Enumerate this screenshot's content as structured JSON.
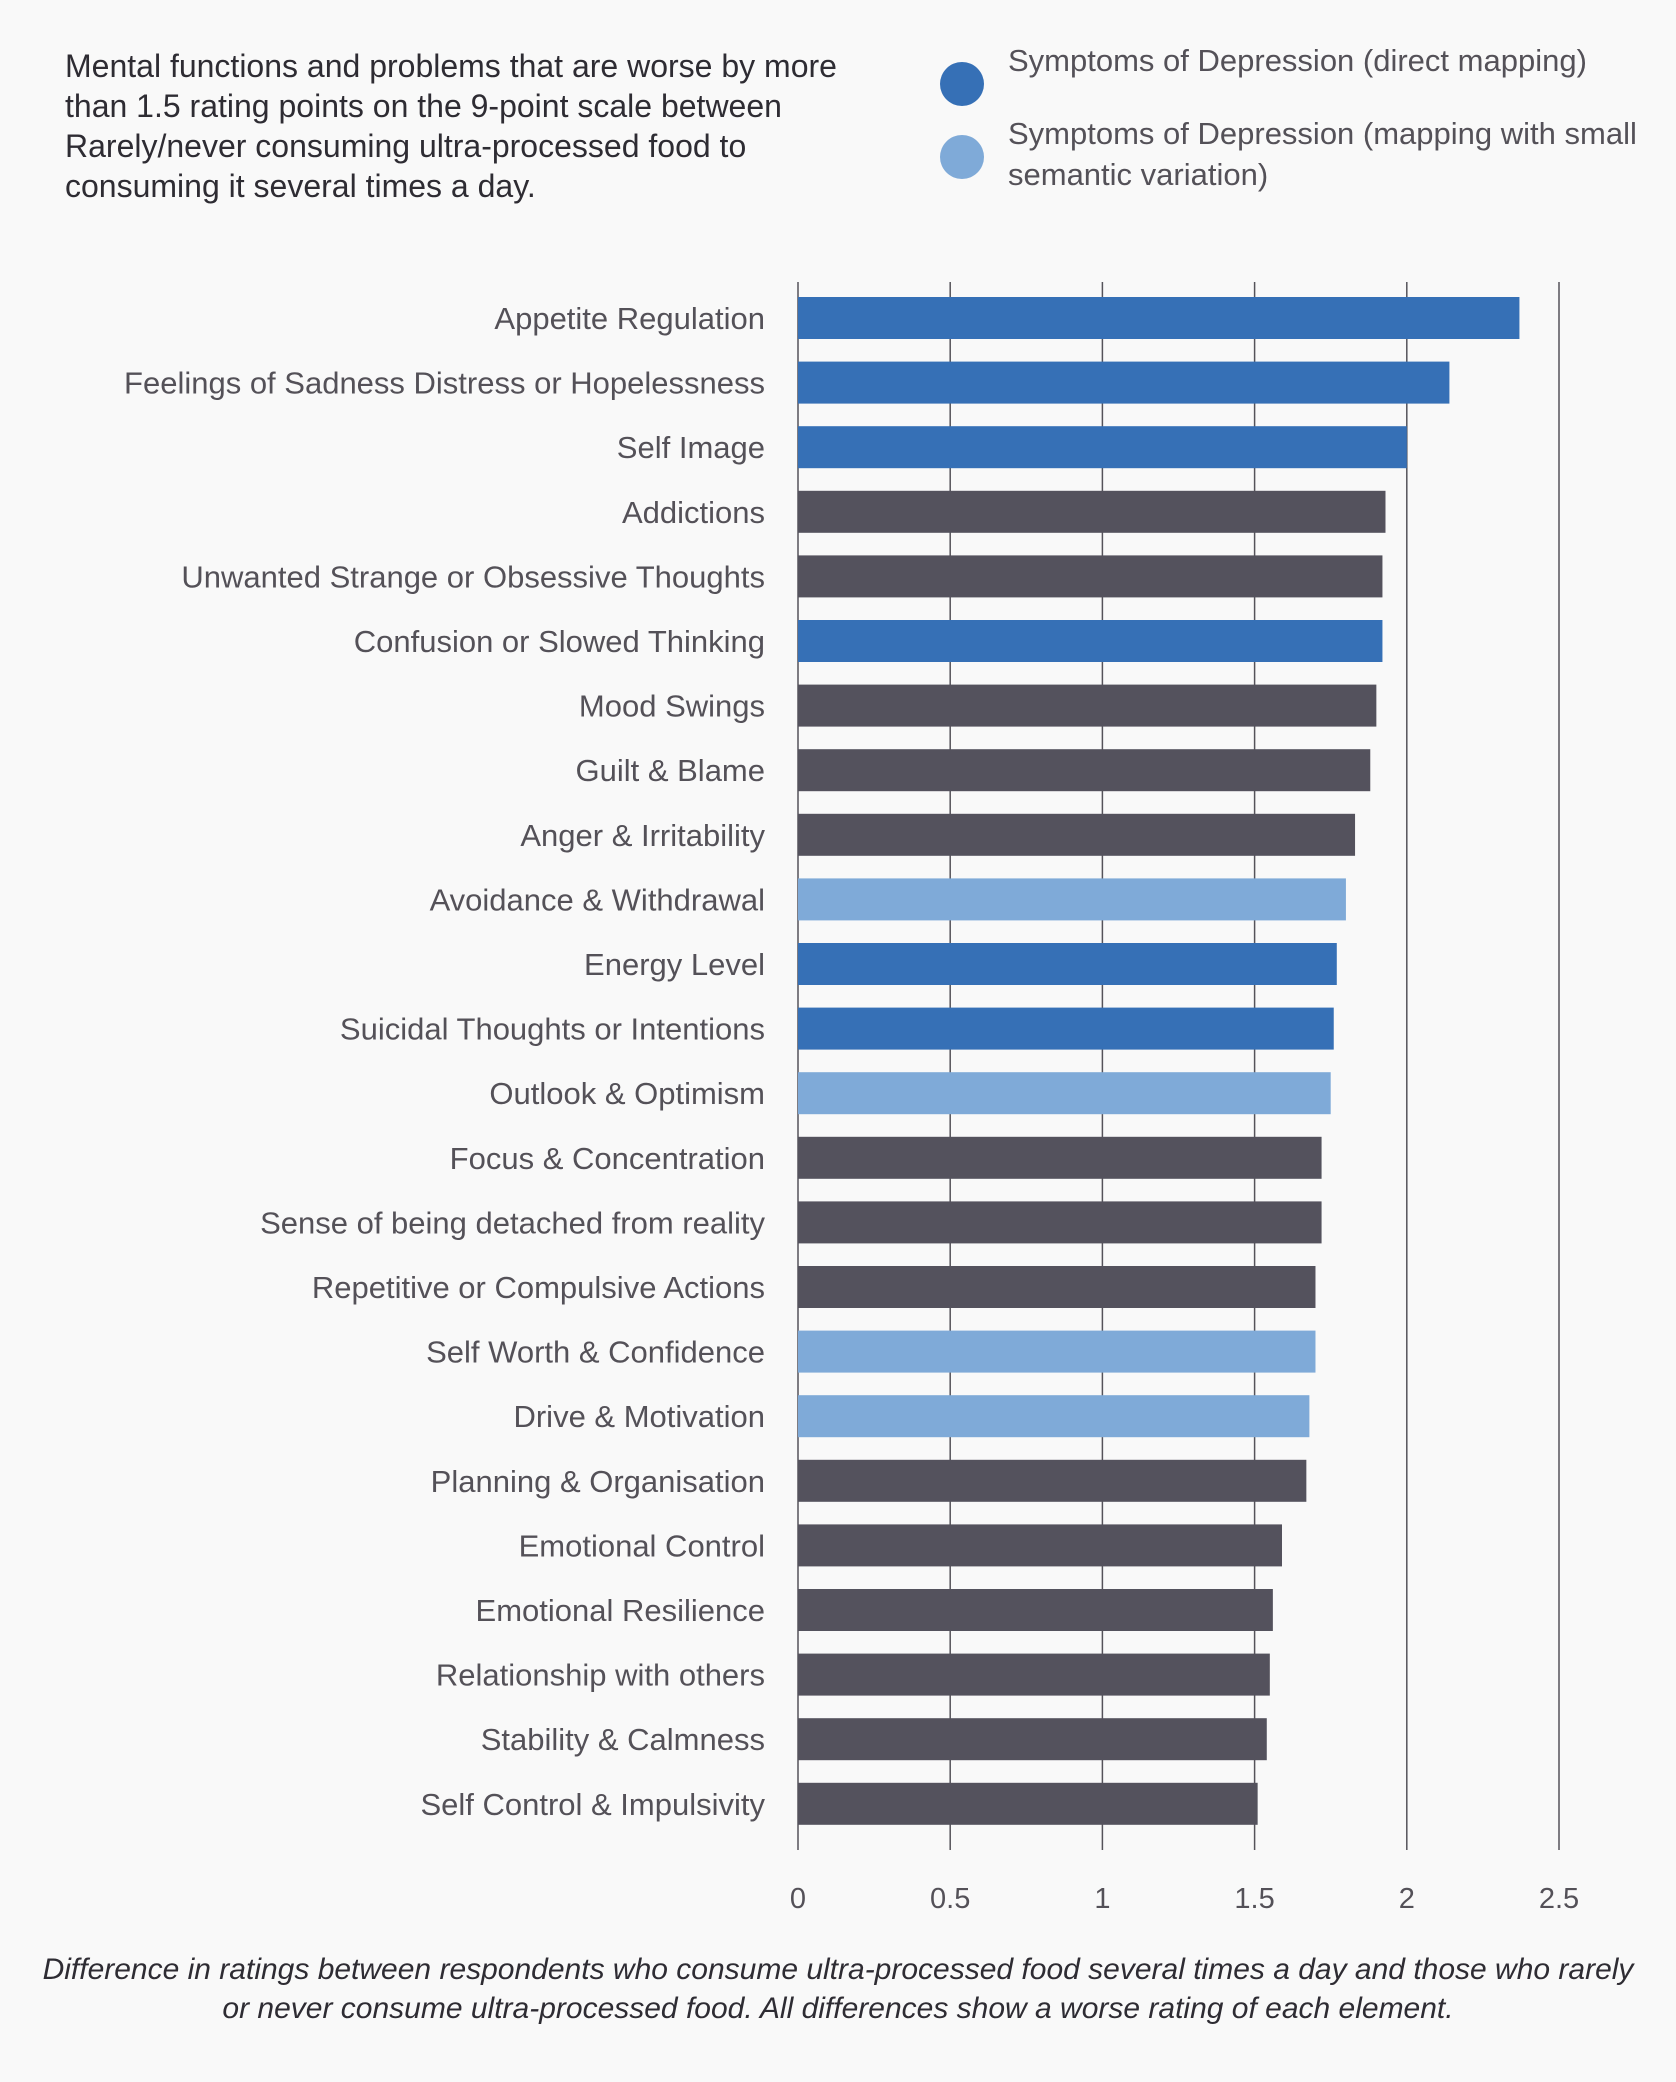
{
  "title": "Mental functions and problems that are worse by more than 1.5 rating points on the 9-point scale between Rarely/never consuming ultra-processed food to consuming it several times a day.",
  "legend": [
    {
      "label": "Symptoms of Depression (direct mapping)",
      "color": "#3670b6"
    },
    {
      "label": "Symptoms of Depression (mapping with small semantic variation)",
      "color": "#7faad8"
    }
  ],
  "caption": "Difference in ratings between respondents who consume ultra-processed food several times a day and those who rarely or never consume ultra-processed food. All differences show a worse rating of each element.",
  "colors": {
    "direct": "#3670b6",
    "semantic": "#7faad8",
    "other": "#54525d",
    "gridline": "#55535a"
  },
  "chart_data": {
    "type": "bar",
    "orientation": "horizontal",
    "xlim": [
      0,
      2.5
    ],
    "xticks": [
      "0",
      "0.5",
      "1",
      "1.5",
      "2",
      "2.5"
    ],
    "xtick_values": [
      0,
      0.5,
      1,
      1.5,
      2,
      2.5
    ],
    "grid": true,
    "legend_position": "top-right",
    "categories": [
      "Appetite Regulation",
      "Feelings of Sadness Distress or Hopelessness",
      "Self Image",
      "Addictions",
      "Unwanted Strange or Obsessive Thoughts",
      "Confusion or Slowed Thinking",
      "Mood Swings",
      "Guilt & Blame",
      "Anger & Irritability",
      "Avoidance & Withdrawal",
      "Energy Level",
      "Suicidal Thoughts or Intentions",
      "Outlook & Optimism",
      "Focus & Concentration",
      "Sense of being detached from reality",
      "Repetitive or Compulsive Actions",
      "Self Worth & Confidence",
      "Drive & Motivation",
      "Planning & Organisation",
      "Emotional Control",
      "Emotional Resilience",
      "Relationship with others",
      "Stability & Calmness",
      "Self Control & Impulsivity"
    ],
    "values": [
      2.37,
      2.14,
      2.0,
      1.93,
      1.92,
      1.92,
      1.9,
      1.88,
      1.83,
      1.8,
      1.77,
      1.76,
      1.75,
      1.72,
      1.72,
      1.7,
      1.7,
      1.68,
      1.67,
      1.59,
      1.56,
      1.55,
      1.54,
      1.51
    ],
    "groups": [
      "direct",
      "direct",
      "direct",
      "other",
      "other",
      "direct",
      "other",
      "other",
      "other",
      "semantic",
      "direct",
      "direct",
      "semantic",
      "other",
      "other",
      "other",
      "semantic",
      "semantic",
      "other",
      "other",
      "other",
      "other",
      "other",
      "other"
    ]
  }
}
